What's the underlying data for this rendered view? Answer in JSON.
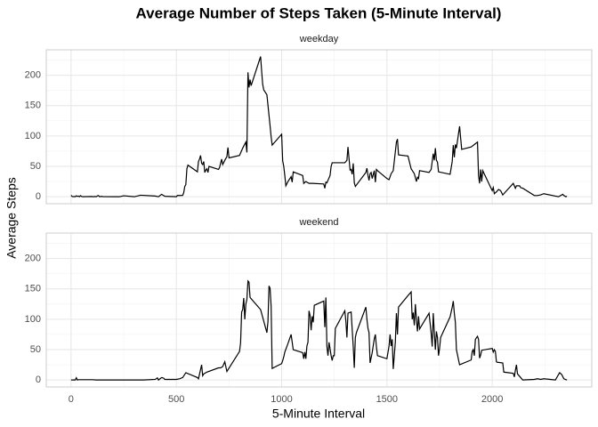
{
  "chart_data": {
    "type": "line",
    "title": "Average Number of Steps Taken (5-Minute Interval)",
    "xlabel": "5-Minute Interval",
    "ylabel": "Average Steps",
    "color": "#000000",
    "grid": true,
    "xlim": [
      -117.75,
      2472.75
    ],
    "xticks": [
      0,
      500,
      1000,
      1500,
      2000
    ],
    "x_minor_ticks": [
      250,
      750,
      1250,
      1750,
      2250
    ],
    "ylim": [
      -11.5,
      242
    ],
    "yticks": [
      0,
      50,
      100,
      150,
      200
    ],
    "y_minor_ticks": [
      25,
      75,
      125,
      175,
      225
    ],
    "panels": [
      {
        "label": "weekday",
        "x": [
          0,
          5,
          10,
          15,
          20,
          25,
          30,
          35,
          40,
          45,
          50,
          55,
          100,
          105,
          110,
          115,
          120,
          125,
          130,
          135,
          145,
          150,
          200,
          230,
          250,
          300,
          330,
          400,
          415,
          430,
          445,
          500,
          505,
          515,
          530,
          535,
          540,
          545,
          550,
          555,
          600,
          605,
          610,
          615,
          620,
          625,
          630,
          635,
          640,
          645,
          650,
          655,
          700,
          705,
          710,
          715,
          720,
          730,
          740,
          745,
          750,
          800,
          815,
          830,
          835,
          840,
          845,
          850,
          855,
          900,
          905,
          910,
          915,
          930,
          945,
          950,
          955,
          1000,
          1005,
          1010,
          1015,
          1020,
          1030,
          1045,
          1050,
          1055,
          1100,
          1105,
          1115,
          1130,
          1145,
          1200,
          1205,
          1210,
          1215,
          1230,
          1235,
          1240,
          1300,
          1310,
          1315,
          1320,
          1325,
          1330,
          1335,
          1340,
          1345,
          1350,
          1400,
          1405,
          1410,
          1415,
          1420,
          1425,
          1430,
          1440,
          1445,
          1450,
          1455,
          1500,
          1510,
          1520,
          1530,
          1545,
          1550,
          1555,
          1600,
          1615,
          1630,
          1640,
          1645,
          1650,
          1655,
          1700,
          1710,
          1720,
          1725,
          1730,
          1735,
          1740,
          1745,
          1800,
          1810,
          1815,
          1820,
          1825,
          1830,
          1845,
          1850,
          1855,
          1900,
          1930,
          1935,
          1940,
          1945,
          1950,
          1955,
          2000,
          2005,
          2010,
          2020,
          2030,
          2040,
          2050,
          2100,
          2110,
          2115,
          2130,
          2135,
          2145,
          2200,
          2215,
          2230,
          2245,
          2300,
          2315,
          2330,
          2335,
          2340,
          2350,
          2355
        ],
        "values": [
          2.3,
          0.5,
          0.2,
          0.2,
          0.1,
          1.6,
          0.6,
          1.1,
          0,
          1.8,
          0.4,
          0,
          0.4,
          0,
          0.2,
          0.4,
          0,
          1.5,
          2,
          0,
          0.6,
          0.2,
          0,
          0,
          1.6,
          0,
          2.5,
          1.1,
          0,
          4,
          0.8,
          0,
          2.1,
          2.1,
          2.2,
          6.6,
          17,
          20,
          46,
          52,
          41,
          58,
          62,
          68,
          55,
          53,
          58,
          40,
          44,
          46,
          40,
          50,
          45,
          48,
          55,
          62,
          53,
          60,
          66,
          81,
          64,
          68,
          80,
          90,
          73,
          205,
          180,
          193,
          183,
          231,
          207,
          185,
          176,
          168,
          117,
          99,
          85,
          103,
          59,
          50,
          35,
          18,
          25,
          33,
          24,
          41,
          35,
          22,
          25,
          22,
          22,
          21,
          14,
          24,
          23,
          35,
          50,
          56,
          56,
          60,
          82,
          63,
          44,
          45,
          37,
          55,
          23,
          17,
          40,
          47,
          35,
          27,
          38,
          40,
          30,
          43,
          24,
          45,
          43,
          30,
          28,
          38,
          43,
          90,
          95,
          69,
          67,
          46,
          38,
          25,
          32,
          30,
          43,
          40,
          45,
          71,
          60,
          80,
          60,
          57,
          41,
          37,
          58,
          85,
          65,
          86,
          80,
          116,
          97,
          78,
          82,
          90,
          35,
          22,
          45,
          25,
          43,
          10,
          15,
          5,
          8,
          12,
          10,
          3,
          22,
          14,
          18,
          18,
          15,
          14,
          2,
          2,
          3,
          5,
          1,
          0,
          3,
          4,
          2,
          0,
          1
        ]
      },
      {
        "label": "weekend",
        "x": [
          0,
          5,
          10,
          15,
          20,
          25,
          30,
          35,
          55,
          100,
          120,
          200,
          300,
          345,
          400,
          410,
          415,
          430,
          440,
          445,
          500,
          515,
          530,
          545,
          600,
          605,
          620,
          625,
          630,
          645,
          700,
          710,
          720,
          730,
          740,
          800,
          805,
          810,
          815,
          820,
          825,
          830,
          835,
          840,
          845,
          850,
          900,
          930,
          935,
          940,
          945,
          950,
          955,
          1000,
          1005,
          1010,
          1015,
          1030,
          1045,
          1055,
          1100,
          1105,
          1110,
          1115,
          1120,
          1125,
          1130,
          1135,
          1140,
          1145,
          1150,
          1155,
          1200,
          1205,
          1210,
          1215,
          1220,
          1225,
          1235,
          1240,
          1245,
          1250,
          1255,
          1300,
          1305,
          1310,
          1315,
          1330,
          1340,
          1345,
          1350,
          1355,
          1400,
          1405,
          1410,
          1415,
          1420,
          1430,
          1440,
          1445,
          1450,
          1455,
          1500,
          1510,
          1515,
          1520,
          1525,
          1530,
          1540,
          1545,
          1550,
          1555,
          1600,
          1615,
          1620,
          1625,
          1630,
          1635,
          1640,
          1645,
          1650,
          1655,
          1700,
          1710,
          1715,
          1720,
          1725,
          1730,
          1735,
          1740,
          1745,
          1750,
          1755,
          1800,
          1805,
          1810,
          1815,
          1820,
          1825,
          1830,
          1845,
          1900,
          1905,
          1910,
          1915,
          1920,
          1930,
          1935,
          1940,
          1945,
          1950,
          2000,
          2005,
          2010,
          2015,
          2020,
          2025,
          2030,
          2050,
          2055,
          2100,
          2105,
          2110,
          2115,
          2120,
          2145,
          2200,
          2215,
          2230,
          2245,
          2300,
          2320,
          2330,
          2340,
          2355
        ],
        "values": [
          0,
          0,
          0,
          0,
          0,
          3.7,
          0,
          0.5,
          0.5,
          0.5,
          0,
          0,
          0,
          0,
          1,
          3.5,
          0,
          4,
          3,
          1,
          1,
          2,
          4,
          12,
          4,
          2,
          25,
          7,
          10,
          13,
          20,
          20,
          22,
          30,
          14,
          47,
          61,
          112,
          116,
          135,
          100,
          125,
          133,
          163,
          161,
          136,
          116,
          78,
          96,
          155,
          151,
          122,
          19,
          27,
          32,
          38,
          46,
          60,
          75,
          50,
          45,
          35,
          46,
          35,
          56,
          62,
          114,
          106,
          82,
          105,
          95,
          123,
          130,
          87,
          136,
          55,
          40,
          62,
          40,
          32,
          40,
          40,
          85,
          114,
          97,
          70,
          110,
          112,
          55,
          20,
          70,
          78,
          120,
          100,
          85,
          78,
          28,
          45,
          68,
          75,
          55,
          40,
          35,
          56,
          75,
          56,
          67,
          18,
          63,
          110,
          75,
          120,
          139,
          145,
          100,
          111,
          90,
          125,
          100,
          80,
          105,
          84,
          110,
          77,
          55,
          110,
          78,
          50,
          80,
          70,
          40,
          52,
          70,
          104,
          112,
          120,
          130,
          110,
          95,
          50,
          25,
          33,
          47,
          50,
          40,
          67,
          72,
          67,
          36,
          41,
          49,
          52,
          46,
          50,
          47,
          30,
          29,
          29,
          28,
          13,
          11,
          5,
          16,
          25,
          10,
          0,
          1,
          2,
          1,
          2,
          0,
          12,
          9,
          2,
          0
        ]
      }
    ]
  }
}
